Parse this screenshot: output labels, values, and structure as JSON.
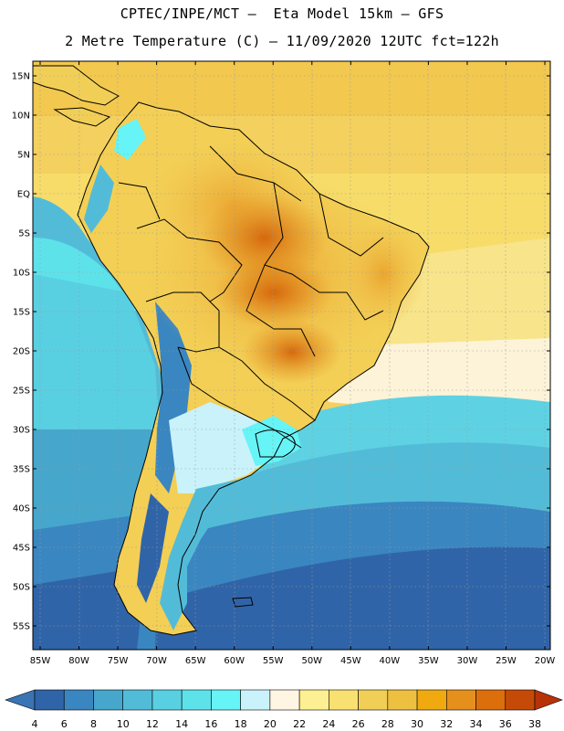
{
  "header": {
    "line1": "CPTEC/INPE/MCT –  Eta Model 15km – GFS",
    "line2": "2 Metre Temperature (C) – 11/09/2020 12UTC fct=122h"
  },
  "map": {
    "lat_labels": [
      "15N",
      "10N",
      "5N",
      "EQ",
      "5S",
      "10S",
      "15S",
      "20S",
      "25S",
      "30S",
      "35S",
      "40S",
      "45S",
      "50S",
      "55S"
    ],
    "lon_labels": [
      "85W",
      "80W",
      "75W",
      "70W",
      "65W",
      "60W",
      "55W",
      "50W",
      "45W",
      "40W",
      "35W",
      "30W",
      "25W",
      "20W"
    ],
    "lat_range": [
      -58,
      16.5
    ],
    "lon_range": [
      -86,
      -20
    ]
  },
  "colorbar": {
    "labels": [
      "4",
      "6",
      "8",
      "10",
      "12",
      "14",
      "16",
      "18",
      "20",
      "22",
      "24",
      "26",
      "28",
      "30",
      "32",
      "34",
      "36",
      "38"
    ],
    "colors": [
      "#3064a8",
      "#3a86c0",
      "#46a6cc",
      "#52bcd8",
      "#58d0e2",
      "#5ee2ea",
      "#66f4f6",
      "#caf2fb",
      "#fef6e3",
      "#fdf092",
      "#f8e170",
      "#f1cf56",
      "#edc040",
      "#f0aa10",
      "#e5901c",
      "#dd6e0c",
      "#c54a08"
    ],
    "under_color": "#3a74b4",
    "over_color": "#b83208"
  }
}
